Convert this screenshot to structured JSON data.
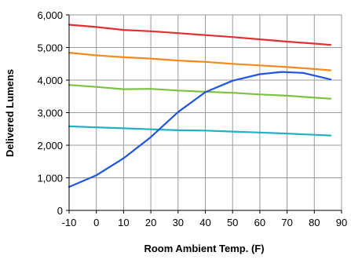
{
  "chart_data": {
    "type": "line",
    "title": "",
    "xlabel": "Room Ambient Temp. (F)",
    "ylabel": "Delivered Lumens",
    "xlim": [
      -10,
      90
    ],
    "ylim": [
      0,
      6000
    ],
    "x_ticks": [
      -10,
      0,
      10,
      20,
      30,
      40,
      50,
      60,
      70,
      80,
      90
    ],
    "y_ticks": [
      0,
      1000,
      2000,
      3000,
      4000,
      5000,
      6000
    ],
    "x_tick_labels": [
      "-10",
      "0",
      "10",
      "20",
      "30",
      "40",
      "50",
      "60",
      "70",
      "80",
      "90"
    ],
    "y_tick_labels": [
      "0",
      "1,000",
      "2,000",
      "3,000",
      "4,000",
      "5,000",
      "6,000"
    ],
    "grid": true,
    "legend": "none",
    "series": [
      {
        "color": "#e03030",
        "x": [
          -10,
          0,
          10,
          20,
          30,
          40,
          50,
          60,
          70,
          80,
          86
        ],
        "y": [
          5700,
          5630,
          5540,
          5500,
          5440,
          5380,
          5320,
          5250,
          5180,
          5120,
          5080
        ]
      },
      {
        "color": "#f28a1e",
        "x": [
          -10,
          0,
          10,
          20,
          30,
          40,
          50,
          60,
          70,
          80,
          86
        ],
        "y": [
          4840,
          4760,
          4700,
          4660,
          4600,
          4560,
          4500,
          4450,
          4400,
          4340,
          4300
        ]
      },
      {
        "color": "#7cc242",
        "x": [
          -10,
          0,
          10,
          20,
          30,
          40,
          50,
          60,
          70,
          80,
          86
        ],
        "y": [
          3850,
          3790,
          3720,
          3730,
          3680,
          3640,
          3610,
          3560,
          3520,
          3460,
          3430
        ]
      },
      {
        "color": "#20b2c2",
        "x": [
          -10,
          0,
          10,
          20,
          30,
          40,
          50,
          60,
          70,
          80,
          86
        ],
        "y": [
          2580,
          2550,
          2520,
          2490,
          2460,
          2450,
          2420,
          2390,
          2360,
          2320,
          2300
        ]
      },
      {
        "color": "#2255dd",
        "x": [
          -10,
          0,
          10,
          20,
          30,
          40,
          50,
          60,
          68,
          76,
          86
        ],
        "y": [
          720,
          1080,
          1600,
          2250,
          3020,
          3630,
          3980,
          4180,
          4250,
          4220,
          4020
        ]
      }
    ]
  }
}
